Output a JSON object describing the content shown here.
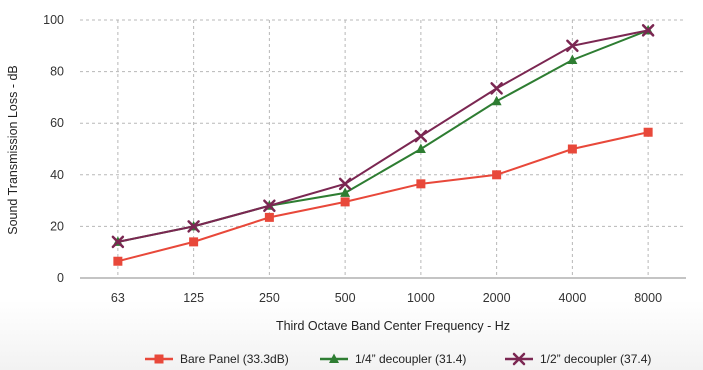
{
  "chart_data": {
    "type": "line",
    "xlabel": "Third Octave Band Center Frequency - Hz",
    "ylabel": "Sound Transmission Loss - dB",
    "categories": [
      "63",
      "125",
      "250",
      "500",
      "1000",
      "2000",
      "4000",
      "8000"
    ],
    "ylim": [
      0,
      100
    ],
    "yticks": [
      0,
      20,
      40,
      60,
      80,
      100
    ],
    "grid": true,
    "legend_position": "bottom",
    "series": [
      {
        "name": "Bare Panel (33.3dB)",
        "color": "#e8483a",
        "marker": "square",
        "values": [
          6.5,
          14,
          23.5,
          29.5,
          36.5,
          40,
          50,
          56.5
        ]
      },
      {
        "name": "1/4” decoupler (31.4)",
        "color": "#2e7d32",
        "marker": "triangle",
        "values": [
          14,
          20,
          28,
          33,
          50,
          68.5,
          84.5,
          96
        ]
      },
      {
        "name": "1/2” decoupler (37.4)",
        "color": "#7b2752",
        "marker": "x",
        "values": [
          14,
          20,
          28,
          36.5,
          55,
          73.5,
          90,
          96
        ]
      }
    ]
  }
}
